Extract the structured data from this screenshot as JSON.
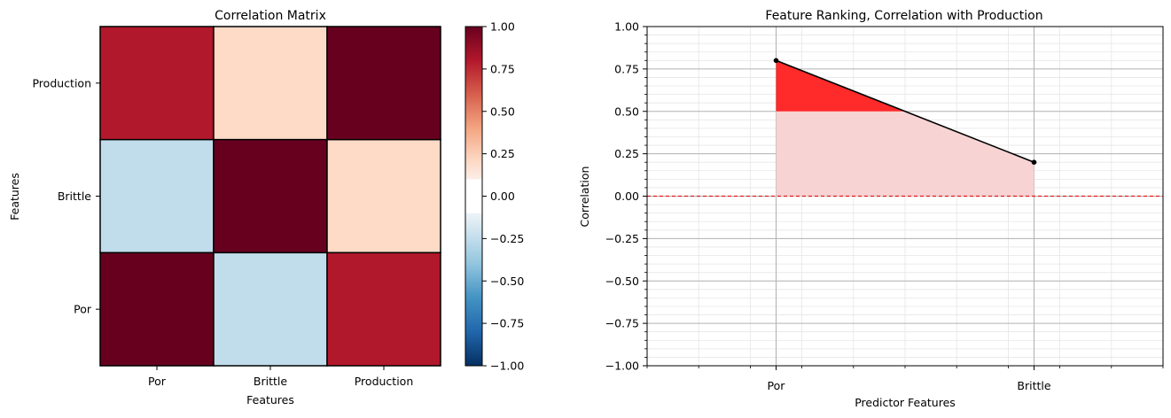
{
  "chart_data": [
    {
      "type": "heatmap",
      "title": "Correlation Matrix",
      "xlabel": "Features",
      "ylabel": "Features",
      "x_categories": [
        "Por",
        "Brittle",
        "Production"
      ],
      "y_categories": [
        "Production",
        "Brittle",
        "Por"
      ],
      "values": [
        [
          0.8,
          0.2,
          1.0
        ],
        [
          -0.25,
          1.0,
          0.2
        ],
        [
          1.0,
          -0.25,
          0.8
        ]
      ],
      "colorbar": {
        "range": [
          -1.0,
          1.0
        ],
        "ticks": [
          "1.00",
          "0.75",
          "0.50",
          "0.25",
          "0.00",
          "−0.25",
          "−0.50",
          "−0.75",
          "−1.00"
        ],
        "colormap": "RdBu_r",
        "masked_band": [
          -0.1,
          0.1
        ]
      }
    },
    {
      "type": "line",
      "title": "Feature Ranking, Correlation with Production",
      "xlabel": "Predictor Features",
      "ylabel": "Correlation",
      "categories": [
        "Por",
        "Brittle"
      ],
      "values": [
        0.8,
        0.2
      ],
      "ylim": [
        -1.0,
        1.0
      ],
      "yticks": [
        "1.00",
        "0.75",
        "0.50",
        "0.25",
        "0.00",
        "−0.25",
        "−0.50",
        "−0.75",
        "−1.00"
      ],
      "reference_line": 0.0,
      "highlight_threshold": 0.5,
      "grid": true,
      "colors": {
        "line": "#000000",
        "fill_light": "#f7d3d3",
        "fill_strong": "#ff2a2a",
        "zero_line": "#e31a1c"
      }
    }
  ]
}
